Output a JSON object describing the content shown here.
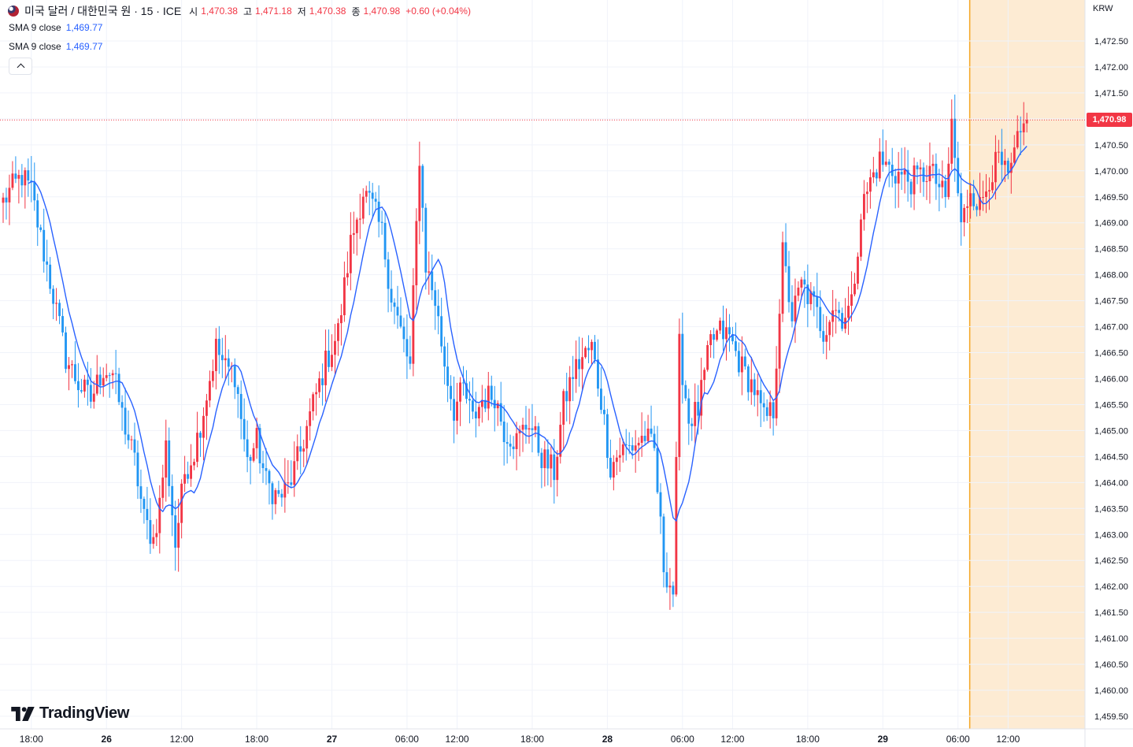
{
  "header": {
    "symbol": "미국 달러 / 대한민국 원 · 15 · ICE",
    "open_label": "시",
    "open": "1,470.38",
    "high_label": "고",
    "high": "1,471.18",
    "low_label": "저",
    "low": "1,470.38",
    "close_label": "종",
    "close": "1,470.98",
    "change": "+0.60 (+0.04%)"
  },
  "indicators": [
    {
      "label": "SMA 9 close",
      "value": "1,469.77"
    },
    {
      "label": "SMA 9 close",
      "value": "1,469.77"
    }
  ],
  "currency": "KRW",
  "last_price_label": "1,470.98",
  "logo": {
    "text": "TradingView"
  },
  "colors": {
    "up": "#f23645",
    "down": "#2196f3",
    "sma": "#2962ff",
    "grid": "#f0f3fa",
    "session_highlight": "#fdebd3",
    "session_line": "#f5a623",
    "last_price_line": "#f23645"
  },
  "chart_data": {
    "type": "candlestick",
    "interval": "15",
    "ylim": [
      1459.3,
      1473.6
    ],
    "yticks": [
      "1,472.50",
      "1,472.00",
      "1,471.50",
      "1,471.00",
      "1,470.50",
      "1,470.00",
      "1,469.50",
      "1,469.00",
      "1,468.50",
      "1,468.00",
      "1,467.50",
      "1,467.00",
      "1,466.50",
      "1,466.00",
      "1,465.50",
      "1,465.00",
      "1,464.50",
      "1,464.00",
      "1,463.50",
      "1,463.00",
      "1,462.50",
      "1,462.00",
      "1,461.50",
      "1,461.00",
      "1,460.50",
      "1,460.00",
      "1,459.50"
    ],
    "ytick_values": [
      1472.5,
      1472.0,
      1471.5,
      1471.0,
      1470.5,
      1470.0,
      1469.5,
      1469.0,
      1468.5,
      1468.0,
      1467.5,
      1467.0,
      1466.5,
      1466.0,
      1465.5,
      1465.0,
      1464.5,
      1464.0,
      1463.5,
      1463.0,
      1462.5,
      1462.0,
      1461.5,
      1461.0,
      1460.5,
      1460.0,
      1459.5
    ],
    "xticks": [
      {
        "label": "18:00",
        "bar": 9
      },
      {
        "label": "26",
        "bar": 33
      },
      {
        "label": "12:00",
        "bar": 57
      },
      {
        "label": "18:00",
        "bar": 81
      },
      {
        "label": "27",
        "bar": 105
      },
      {
        "label": "06:00",
        "bar": 129
      },
      {
        "label": "12:00",
        "bar": 145
      },
      {
        "label": "18:00",
        "bar": 169
      },
      {
        "label": "28",
        "bar": 193
      },
      {
        "label": "06:00",
        "bar": 217
      },
      {
        "label": "12:00",
        "bar": 233
      },
      {
        "label": "18:00",
        "bar": 257
      },
      {
        "label": "29",
        "bar": 281
      },
      {
        "label": "06:00",
        "bar": 305
      },
      {
        "label": "12:00",
        "bar": 321
      }
    ],
    "bars_visible": 336,
    "session_start_bar": 309,
    "last_price": 1470.98,
    "sma_period": 9,
    "sma_last": 1469.77,
    "close_anchors": [
      [
        0,
        1469.4
      ],
      [
        2,
        1469.6
      ],
      [
        6,
        1469.9
      ],
      [
        9,
        1469.6
      ],
      [
        12,
        1468.7
      ],
      [
        16,
        1467.6
      ],
      [
        20,
        1466.4
      ],
      [
        24,
        1465.9
      ],
      [
        28,
        1465.6
      ],
      [
        32,
        1466.2
      ],
      [
        35,
        1466.1
      ],
      [
        38,
        1465.3
      ],
      [
        42,
        1464.4
      ],
      [
        45,
        1463.3
      ],
      [
        48,
        1462.9
      ],
      [
        50,
        1463.6
      ],
      [
        52,
        1464.7
      ],
      [
        55,
        1462.8
      ],
      [
        58,
        1464.2
      ],
      [
        61,
        1464.6
      ],
      [
        64,
        1465.4
      ],
      [
        68,
        1466.6
      ],
      [
        71,
        1466.2
      ],
      [
        74,
        1466.1
      ],
      [
        78,
        1464.4
      ],
      [
        81,
        1464.8
      ],
      [
        84,
        1464.0
      ],
      [
        88,
        1463.7
      ],
      [
        91,
        1463.9
      ],
      [
        95,
        1464.6
      ],
      [
        99,
        1465.5
      ],
      [
        103,
        1466.3
      ],
      [
        107,
        1466.9
      ],
      [
        111,
        1468.6
      ],
      [
        115,
        1469.6
      ],
      [
        118,
        1469.3
      ],
      [
        121,
        1468.8
      ],
      [
        124,
        1467.6
      ],
      [
        127,
        1466.9
      ],
      [
        130,
        1466.2
      ],
      [
        133,
        1470.3
      ],
      [
        135,
        1468.2
      ],
      [
        138,
        1467.5
      ],
      [
        141,
        1466.3
      ],
      [
        144,
        1465.4
      ],
      [
        147,
        1465.8
      ],
      [
        150,
        1465.2
      ],
      [
        153,
        1465.6
      ],
      [
        157,
        1465.7
      ],
      [
        160,
        1465.0
      ],
      [
        164,
        1464.8
      ],
      [
        168,
        1465.2
      ],
      [
        172,
        1464.5
      ],
      [
        176,
        1464.2
      ],
      [
        179,
        1465.5
      ],
      [
        182,
        1466.1
      ],
      [
        185,
        1466.4
      ],
      [
        188,
        1466.6
      ],
      [
        191,
        1465.6
      ],
      [
        194,
        1464.3
      ],
      [
        197,
        1464.6
      ],
      [
        201,
        1464.7
      ],
      [
        205,
        1464.9
      ],
      [
        208,
        1464.6
      ],
      [
        211,
        1462.4
      ],
      [
        214,
        1461.9
      ],
      [
        216,
        1466.6
      ],
      [
        219,
        1465.2
      ],
      [
        222,
        1465.4
      ],
      [
        226,
        1466.7
      ],
      [
        229,
        1466.9
      ],
      [
        232,
        1466.8
      ],
      [
        236,
        1466.2
      ],
      [
        240,
        1465.8
      ],
      [
        243,
        1465.2
      ],
      [
        246,
        1465.4
      ],
      [
        249,
        1468.4
      ],
      [
        252,
        1467.2
      ],
      [
        255,
        1467.8
      ],
      [
        259,
        1467.4
      ],
      [
        262,
        1466.9
      ],
      [
        265,
        1467.4
      ],
      [
        268,
        1467.2
      ],
      [
        271,
        1467.4
      ],
      [
        274,
        1469.2
      ],
      [
        277,
        1469.8
      ],
      [
        280,
        1470.2
      ],
      [
        284,
        1470.0
      ],
      [
        287,
        1469.9
      ],
      [
        290,
        1469.8
      ],
      [
        293,
        1469.9
      ],
      [
        296,
        1470.0
      ],
      [
        299,
        1469.7
      ],
      [
        301,
        1469.4
      ],
      [
        303,
        1470.9
      ],
      [
        306,
        1468.9
      ],
      [
        309,
        1469.7
      ],
      [
        312,
        1469.3
      ],
      [
        315,
        1469.9
      ],
      [
        318,
        1470.2
      ],
      [
        321,
        1469.8
      ],
      [
        324,
        1470.5
      ],
      [
        327,
        1470.98
      ]
    ]
  }
}
